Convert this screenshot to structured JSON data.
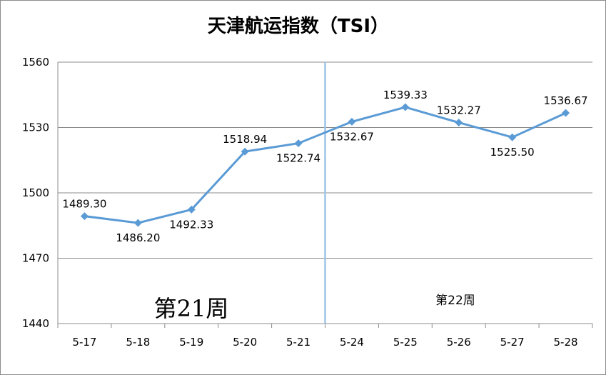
{
  "chart_data": {
    "type": "line",
    "title": "天津航运指数（TSI）",
    "categories": [
      "5-17",
      "5-18",
      "5-19",
      "5-20",
      "5-21",
      "5-24",
      "5-25",
      "5-26",
      "5-27",
      "5-28"
    ],
    "series": [
      {
        "values": [
          1489.3,
          1486.2,
          1492.33,
          1518.94,
          1522.74,
          1532.67,
          1539.33,
          1532.27,
          1525.5,
          1536.67
        ],
        "labels": [
          "1489.30",
          "1486.20",
          "1492.33",
          "1518.94",
          "1522.74",
          "1532.67",
          "1539.33",
          "1532.27",
          "1525.50",
          "1536.67"
        ],
        "label_side": [
          "above",
          "below",
          "below",
          "above",
          "below",
          "below",
          "above",
          "above",
          "below",
          "above"
        ]
      }
    ],
    "ylim": [
      1440,
      1560
    ],
    "yticks": [
      1440,
      1470,
      1500,
      1530,
      1560
    ],
    "grid": true,
    "legend": "none",
    "annotations": [
      "第21周",
      "第22周"
    ],
    "divider_after_category": "5-21",
    "colors": {
      "series": "#5b9bd5",
      "divider": "#9dc3e6",
      "grid": "#8c8c8c"
    }
  }
}
